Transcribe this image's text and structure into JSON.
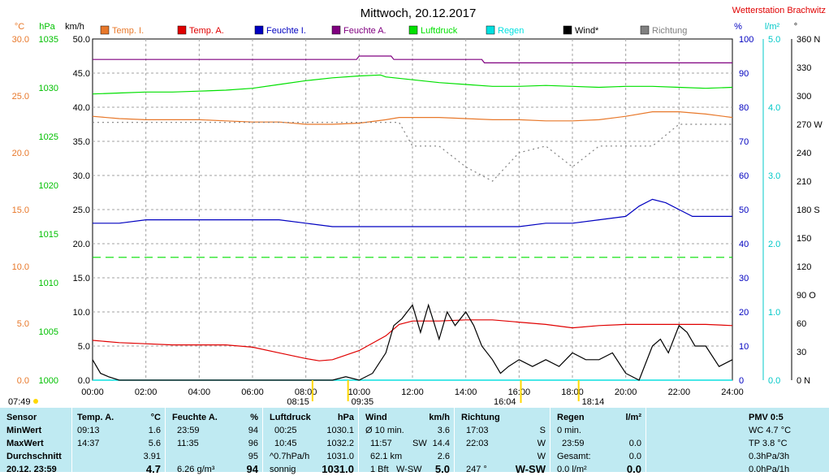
{
  "window": {
    "title": "Mittwoch, 20.12.2017",
    "station": "Wetterstation Brachwitz"
  },
  "colors": {
    "temp_inner": "#e8782a",
    "temp_outer": "#e00000",
    "hum_inner": "#0000c0",
    "hum_outer": "#800080",
    "pressure": "#00e000",
    "rain": "#00e0e0",
    "wind": "#000000",
    "direction": "#808080",
    "stats_bg": "#bfeaf2"
  },
  "chart_data": {
    "type": "line",
    "title": "Mittwoch, 20.12.2017",
    "x_ticks": [
      "00:00",
      "02:00",
      "04:00",
      "06:00",
      "08:00",
      "10:00",
      "12:00",
      "14:00",
      "16:00",
      "18:00",
      "20:00",
      "22:00",
      "24:00"
    ],
    "xlim": [
      0,
      24
    ],
    "grid": true,
    "axes": {
      "temp": {
        "unit": "°C",
        "range": [
          0,
          30
        ],
        "ticks": [
          "0.0",
          "5.0",
          "10.0",
          "15.0",
          "20.0",
          "25.0",
          "30.0"
        ]
      },
      "pressure": {
        "unit": "hPa",
        "range": [
          1000,
          1036
        ],
        "ticks": [
          "1000",
          "1005",
          "1010",
          "1015",
          "1020",
          "1025",
          "1030",
          "1035"
        ]
      },
      "wind": {
        "unit": "km/h",
        "range": [
          0,
          50
        ],
        "ticks": [
          "0.0",
          "5.0",
          "10.0",
          "15.0",
          "20.0",
          "25.0",
          "30.0",
          "35.0",
          "40.0",
          "45.0",
          "50.0"
        ]
      },
      "humidity": {
        "unit": "%",
        "range": [
          0,
          100
        ],
        "ticks": [
          "0",
          "10",
          "20",
          "30",
          "40",
          "50",
          "60",
          "70",
          "80",
          "90",
          "100"
        ]
      },
      "rain": {
        "unit": "l/m²",
        "range": [
          0,
          5
        ],
        "ticks": [
          "0.0",
          "1.0",
          "2.0",
          "3.0",
          "4.0",
          "5.0"
        ]
      },
      "direction": {
        "unit": "°",
        "range": [
          0,
          360
        ],
        "ticks": [
          "0 N",
          "30",
          "60",
          "90 O",
          "120",
          "150",
          "180 S",
          "210",
          "240",
          "270 W",
          "300",
          "330",
          "360 N"
        ]
      }
    },
    "legend": [
      {
        "name": "Temp. I.",
        "color_key": "temp_inner"
      },
      {
        "name": "Temp. A.",
        "color_key": "temp_outer"
      },
      {
        "name": "Feuchte I.",
        "color_key": "hum_inner"
      },
      {
        "name": "Feuchte A.",
        "color_key": "hum_outer"
      },
      {
        "name": "Luftdruck",
        "color_key": "pressure"
      },
      {
        "name": "Regen",
        "color_key": "rain"
      },
      {
        "name": "Wind*",
        "color_key": "wind"
      },
      {
        "name": "Richtung",
        "color_key": "direction"
      }
    ],
    "series": [
      {
        "name": "Temp. I.",
        "axis": "temp",
        "color_key": "temp_inner",
        "x": [
          0,
          1,
          2,
          3,
          4,
          5,
          6,
          7,
          8,
          9,
          10,
          11,
          11.5,
          12,
          13,
          14,
          15,
          16,
          17,
          18,
          19,
          20,
          21,
          22,
          23,
          24
        ],
        "values": [
          23.2,
          23.0,
          22.9,
          22.9,
          22.9,
          22.8,
          22.7,
          22.7,
          22.5,
          22.5,
          22.6,
          22.9,
          23.1,
          23.1,
          23.1,
          23.0,
          22.9,
          22.9,
          22.8,
          22.8,
          22.9,
          23.2,
          23.6,
          23.6,
          23.4,
          23.1
        ]
      },
      {
        "name": "Temp. A.",
        "axis": "temp",
        "color_key": "temp_outer",
        "x": [
          0,
          1,
          2,
          3,
          4,
          5,
          6,
          7,
          8,
          8.5,
          9,
          10,
          11,
          11.5,
          12,
          13,
          14,
          15,
          16,
          17,
          18,
          19,
          20,
          21,
          22,
          23,
          24
        ],
        "values": [
          3.5,
          3.3,
          3.2,
          3.1,
          3.1,
          3.1,
          2.9,
          2.4,
          1.9,
          1.7,
          1.8,
          2.6,
          3.9,
          4.9,
          5.2,
          5.2,
          5.3,
          5.3,
          5.1,
          4.9,
          4.6,
          4.8,
          4.9,
          4.9,
          4.9,
          4.9,
          4.8
        ]
      },
      {
        "name": "Feuchte I.",
        "axis": "humidity",
        "color_key": "hum_inner",
        "x": [
          0,
          1,
          2,
          3,
          4,
          5,
          6,
          7,
          8,
          9,
          10,
          11,
          12,
          13,
          14,
          15,
          16,
          17,
          18,
          19,
          20,
          20.5,
          21,
          21.5,
          22,
          22.5,
          23,
          24
        ],
        "values": [
          46,
          46,
          47,
          47,
          47,
          47,
          47,
          47,
          46,
          45,
          45,
          45,
          45,
          45,
          45,
          45,
          45,
          46,
          46,
          47,
          48,
          51,
          53,
          52,
          50,
          48,
          48,
          48
        ]
      },
      {
        "name": "Feuchte A.",
        "axis": "humidity",
        "color_key": "hum_outer",
        "x": [
          0,
          5,
          9.9,
          10,
          11.2,
          11.3,
          12,
          14.6,
          14.7,
          24
        ],
        "values": [
          94,
          94,
          94,
          95,
          95,
          94,
          94,
          94,
          93,
          93
        ]
      },
      {
        "name": "Luftdruck",
        "axis": "pressure",
        "color_key": "pressure",
        "x": [
          0,
          1,
          2,
          3,
          4,
          5,
          6,
          7,
          8,
          9,
          10,
          10.8,
          11,
          12,
          13,
          14,
          15,
          16,
          17,
          18,
          19,
          20,
          21,
          22,
          23,
          24
        ],
        "values": [
          1030.2,
          1030.3,
          1030.4,
          1030.4,
          1030.5,
          1030.6,
          1030.8,
          1031.2,
          1031.6,
          1031.9,
          1032.1,
          1032.2,
          1032.0,
          1031.7,
          1031.4,
          1031.2,
          1031.0,
          1031.0,
          1031.1,
          1031.0,
          1030.9,
          1031.0,
          1031.0,
          1030.9,
          1030.8,
          1030.9
        ]
      },
      {
        "name": "Regen",
        "axis": "rain",
        "color_key": "rain",
        "x": [
          0,
          24
        ],
        "values": [
          0,
          0
        ]
      },
      {
        "name": "Wind*",
        "axis": "wind",
        "color_key": "wind",
        "x": [
          0,
          0.3,
          0.6,
          1,
          2,
          3,
          4,
          5,
          6,
          7,
          8,
          9,
          9.5,
          10,
          10.5,
          11,
          11.3,
          11.6,
          12,
          12.3,
          12.6,
          13,
          13.3,
          13.6,
          14,
          14.3,
          14.6,
          15,
          15.3,
          15.6,
          16,
          16.5,
          17,
          17.5,
          18,
          18.5,
          19,
          19.5,
          20,
          20.5,
          21,
          21.3,
          21.6,
          22,
          22.3,
          22.6,
          23,
          23.5,
          24
        ],
        "values": [
          3,
          1,
          0.5,
          0,
          0,
          0,
          0,
          0,
          0,
          0,
          0,
          0,
          0.5,
          0,
          1,
          4,
          8,
          9,
          11,
          7,
          11,
          6,
          10,
          8,
          10,
          8,
          5,
          3,
          1,
          2,
          3,
          2,
          3,
          2,
          4,
          3,
          3,
          4,
          1,
          0,
          5,
          6,
          4,
          8,
          7,
          5,
          5,
          2,
          3
        ]
      },
      {
        "name": "Richtung",
        "axis": "direction",
        "color_key": "direction",
        "x": [
          0,
          1,
          2,
          3,
          4,
          5,
          6,
          7,
          8,
          9,
          10,
          11,
          11.5,
          12,
          13,
          14,
          15,
          16,
          17,
          18,
          19,
          20,
          21,
          22,
          23,
          24
        ],
        "values": [
          272,
          272,
          272,
          272,
          272,
          272,
          272,
          272,
          272,
          272,
          272,
          272,
          272,
          247,
          247,
          225,
          210,
          240,
          247,
          225,
          247,
          247,
          247,
          270,
          270,
          270
        ]
      }
    ],
    "reference_lines": [
      {
        "axis": "temp",
        "value": 0.0,
        "color_key": "rain"
      },
      {
        "axis": "wind",
        "value": 18.0,
        "color_key": "pressure",
        "style": "dashed"
      }
    ],
    "markers": {
      "sunrise": "07:49",
      "sunset": "16:04",
      "events": [
        "08:15",
        "09:35",
        "18:14"
      ]
    }
  },
  "stats": {
    "sensor": {
      "header": "Sensor",
      "rows": [
        "MinWert",
        "MaxWert",
        "Durchschnitt",
        "20.12. 23:59"
      ]
    },
    "temp_a": {
      "header": "Temp. A.",
      "unit": "°C",
      "rows": [
        [
          "09:13",
          "1.6"
        ],
        [
          "14:37",
          "5.6"
        ],
        [
          "",
          "3.91"
        ],
        [
          "",
          "4.7"
        ]
      ]
    },
    "feuchte_a": {
      "header": "Feuchte A.",
      "unit": "%",
      "rows": [
        [
          "23:59",
          "94"
        ],
        [
          "11:35",
          "96"
        ],
        [
          "",
          "95"
        ],
        [
          "6.26 g/m³",
          "94"
        ]
      ]
    },
    "luftdruck": {
      "header": "Luftdruck",
      "unit": "hPa",
      "rows": [
        [
          "00:25",
          "1030.1"
        ],
        [
          "10:45",
          "1032.2"
        ],
        [
          "^0.7hPa/h",
          "1031.0"
        ],
        [
          "sonnig",
          "1031.0"
        ]
      ]
    },
    "wind": {
      "header": "Wind",
      "unit": "km/h",
      "rows": [
        [
          "Ø 10 min.",
          "",
          "3.6"
        ],
        [
          "11:57",
          "SW",
          "14.4"
        ],
        [
          "62.1 km",
          "",
          "2.6"
        ],
        [
          "1 Bft",
          "W-SW",
          "5.0"
        ]
      ]
    },
    "richtung": {
      "header": "Richtung",
      "rows": [
        [
          "17:03",
          "S"
        ],
        [
          "22:03",
          "W"
        ],
        [
          "",
          "W"
        ],
        [
          "247 °",
          "W-SW"
        ]
      ]
    },
    "regen": {
      "header": "Regen",
      "unit": "l/m²",
      "rows": [
        [
          "0 min.",
          ""
        ],
        [
          "23:59",
          "0.0"
        ],
        [
          "Gesamt:",
          "0.0"
        ],
        [
          "0.0 l/m²",
          "0.0"
        ]
      ]
    },
    "pmv": {
      "header": "PMV 0:5",
      "rows": [
        "WC 4.7 °C",
        "TP 3.8 °C",
        "0.3hPa/3h",
        "0.0hPa/1h"
      ]
    }
  }
}
